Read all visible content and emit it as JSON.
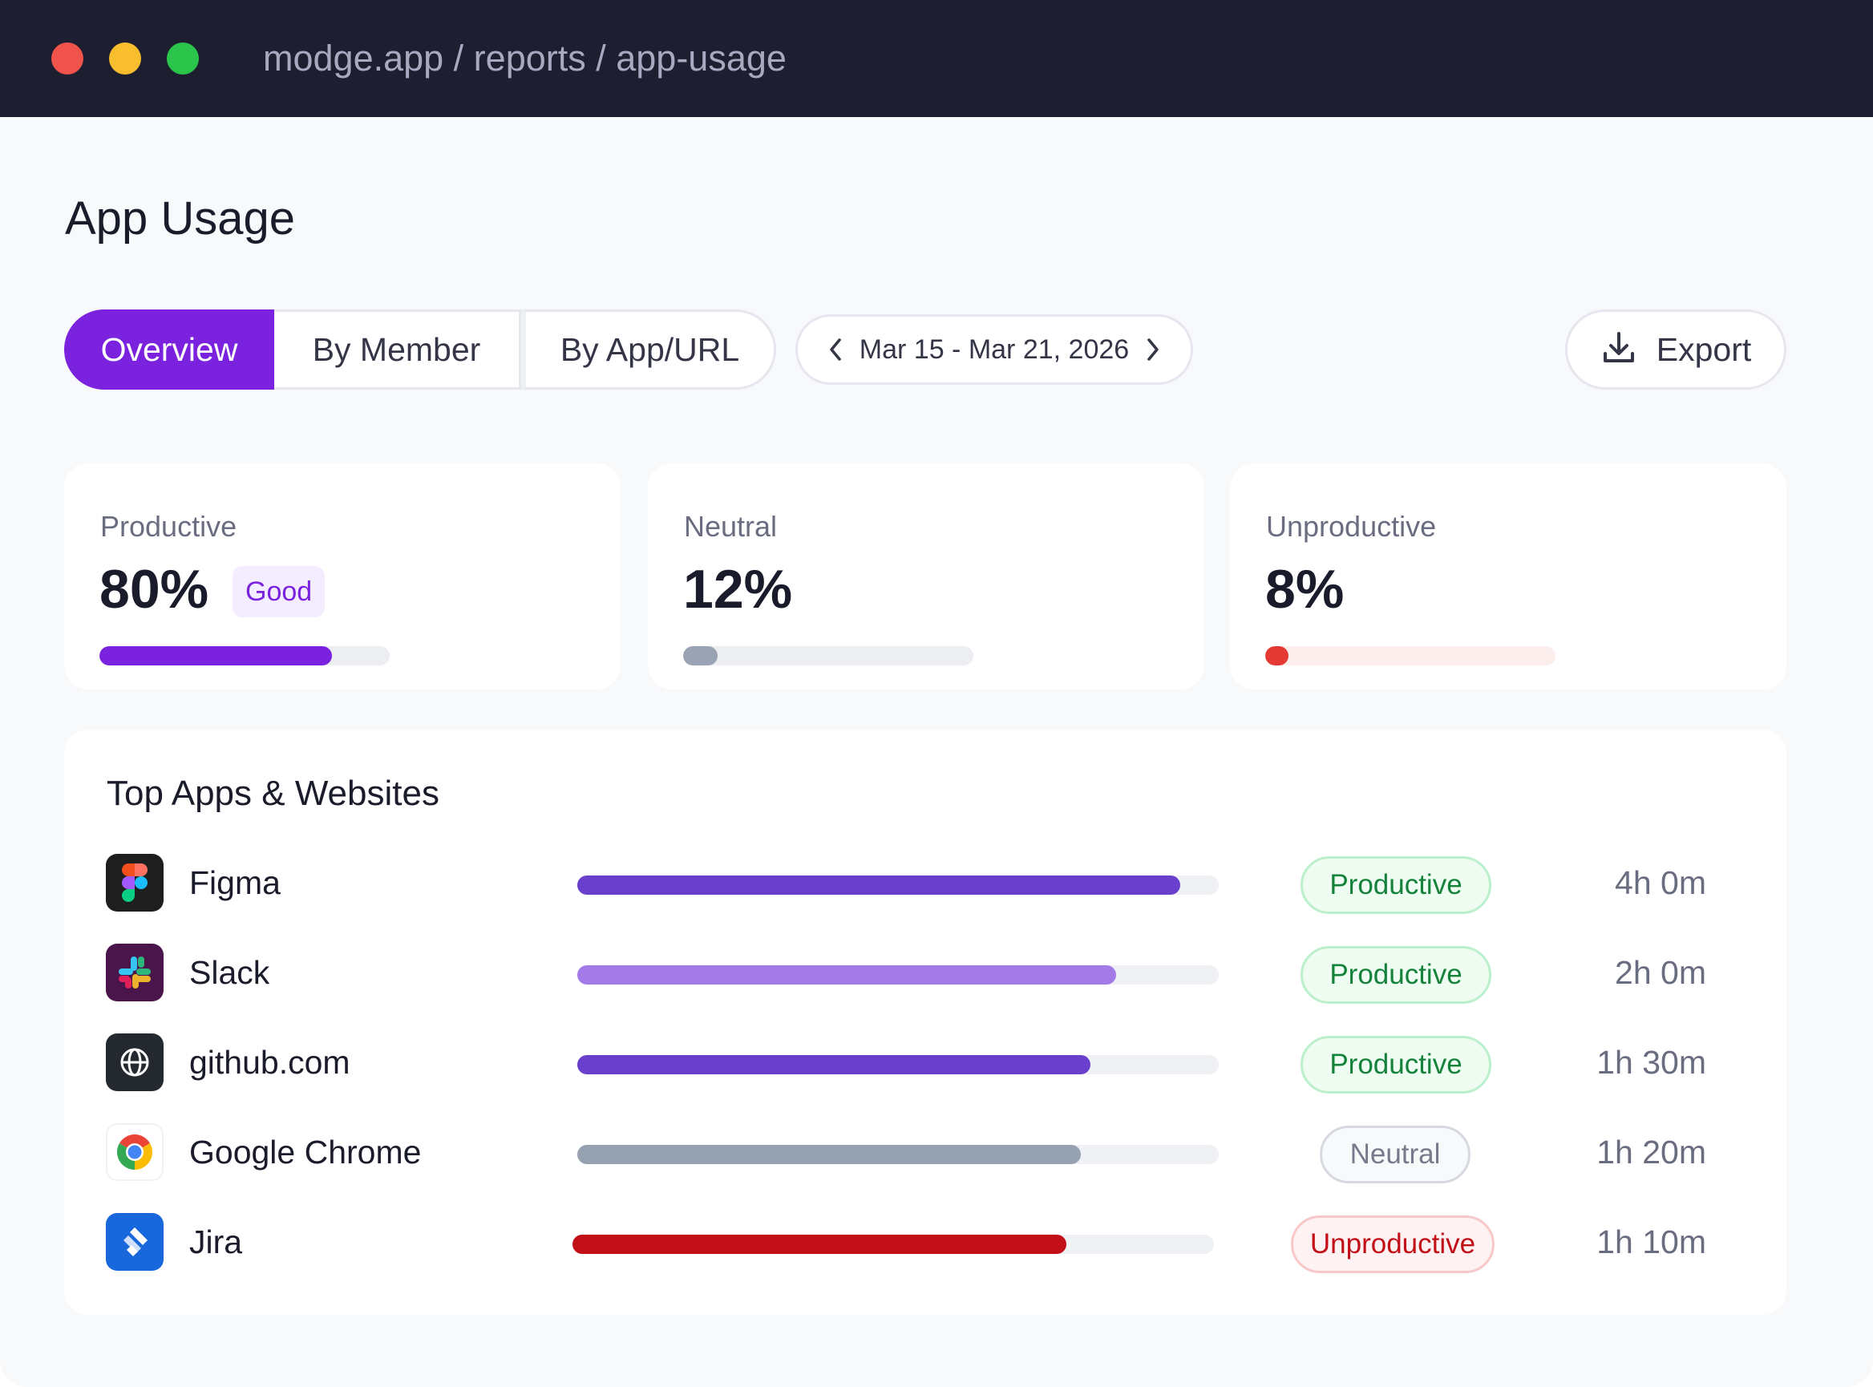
{
  "window": {
    "url": "modge.app / reports / app-usage"
  },
  "page": {
    "title": "App Usage"
  },
  "tabs": [
    {
      "label": "Overview",
      "active": true
    },
    {
      "label": "By Member",
      "active": false
    },
    {
      "label": "By App/URL",
      "active": false
    }
  ],
  "date_range": {
    "label": "Mar 15 - Mar 21, 2026",
    "prev_icon": "chevron-left-icon",
    "next_icon": "chevron-right-icon"
  },
  "export": {
    "label": "Export",
    "icon": "download-icon"
  },
  "metrics": [
    {
      "label": "Productive",
      "value": "80%",
      "badge": "Good",
      "fill_fraction": 0.8,
      "color": "#7a22de",
      "track_color": "#eceef2"
    },
    {
      "label": "Neutral",
      "value": "12%",
      "fill_fraction": 0.12,
      "color": "#9aa3b3",
      "track_color": "#eceef2"
    },
    {
      "label": "Unproductive",
      "value": "8%",
      "fill_fraction": 0.08,
      "color": "#e53935",
      "track_color": "#fdeeee"
    }
  ],
  "top_apps": {
    "title": "Top Apps & Websites",
    "rows": [
      {
        "name": "Figma",
        "icon": "figma-icon",
        "category": "Productive",
        "duration": "4h 0m",
        "fill_fraction": 0.94,
        "bar_color": "#6a3fcc"
      },
      {
        "name": "Slack",
        "icon": "slack-icon",
        "category": "Productive",
        "duration": "2h 0m",
        "fill_fraction": 0.84,
        "bar_color": "#a27be8"
      },
      {
        "name": "github.com",
        "icon": "globe-icon",
        "category": "Productive",
        "duration": "1h 30m",
        "fill_fraction": 0.8,
        "bar_color": "#6a3fcc"
      },
      {
        "name": "Google Chrome",
        "icon": "chrome-icon",
        "category": "Neutral",
        "duration": "1h 20m",
        "fill_fraction": 0.785,
        "bar_color": "#96a1b2"
      },
      {
        "name": "Jira",
        "icon": "jira-icon",
        "category": "Unproductive",
        "duration": "1h 10m",
        "fill_fraction": 0.77,
        "bar_color": "#c20f17"
      }
    ]
  },
  "colors": {
    "accent": "#7a22de",
    "titlebar": "#1d1e2f",
    "productive": "#14823a",
    "neutral": "#767a8a",
    "unproductive": "#c20f17"
  }
}
